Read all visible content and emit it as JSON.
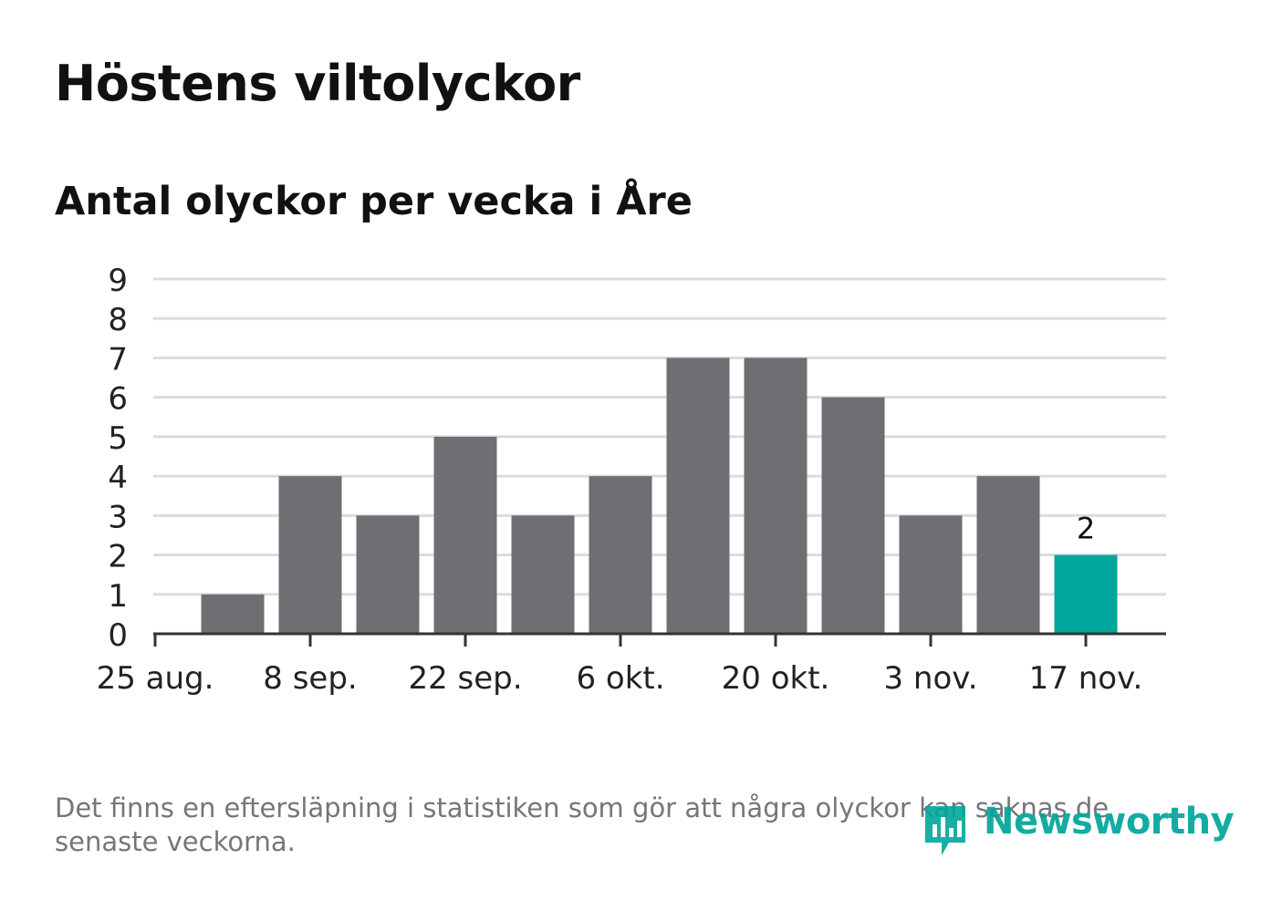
{
  "header": {
    "title": "Höstens viltolyckor",
    "subtitle": "Antal olyckor per vecka i Åre"
  },
  "footer": {
    "note": "Det finns en eftersläpning i statistiken som gör att några olyckor kan saknas de senaste veckorna.",
    "logo_text": "Newsworthy"
  },
  "colors": {
    "bar": "#6f6e73",
    "highlight": "#00a69c",
    "grid": "#dcdcdc",
    "axis": "#333333",
    "text": "#111111"
  },
  "chart_data": {
    "type": "bar",
    "x_tick_labels": [
      "25 aug.",
      "8 sep.",
      "22 sep.",
      "6 okt.",
      "20 okt.",
      "3 nov.",
      "17 nov."
    ],
    "x": [
      "1 sep.",
      "8 sep.",
      "15 sep.",
      "22 sep.",
      "29 sep.",
      "6 okt.",
      "13 okt.",
      "20 okt.",
      "27 okt.",
      "3 nov.",
      "10 nov.",
      "17 nov."
    ],
    "values": [
      1,
      4,
      3,
      5,
      3,
      4,
      7,
      7,
      6,
      3,
      4,
      2
    ],
    "highlight_last": true,
    "data_labels": [
      {
        "index": 11,
        "text": "2"
      }
    ],
    "ylim": [
      0,
      9
    ],
    "y_ticks": [
      0,
      1,
      2,
      3,
      4,
      5,
      6,
      7,
      8,
      9
    ],
    "grid": true,
    "xlabel": "",
    "ylabel": ""
  }
}
